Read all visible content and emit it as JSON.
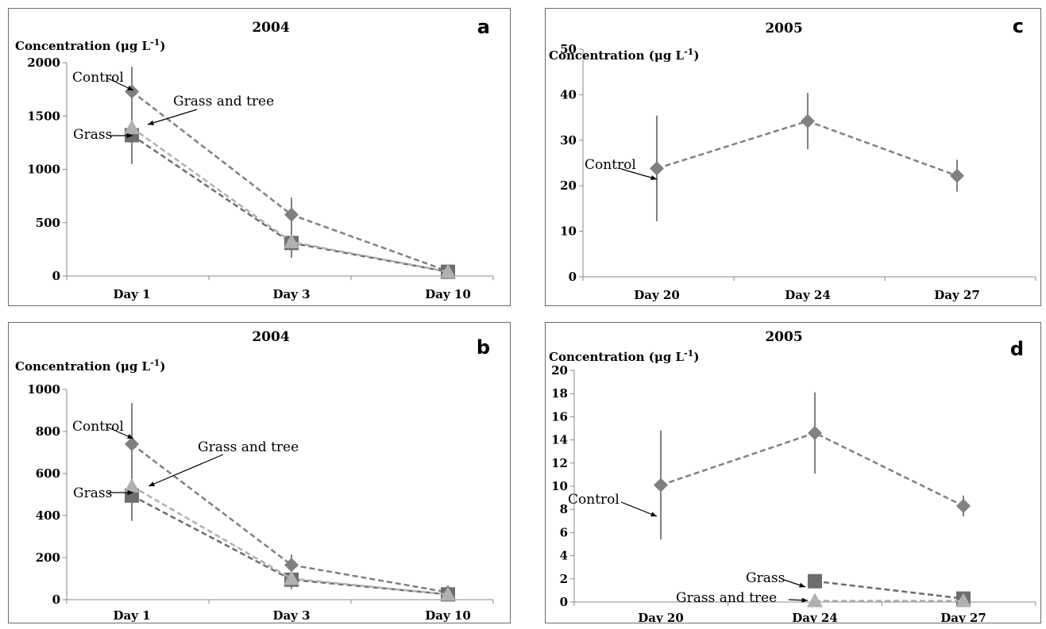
{
  "chart_data": [
    {
      "panel": "a",
      "type": "line",
      "title": "2004",
      "ylabel": "Concentration (μg L-1)",
      "ylabel_main": "Concentration (μg L",
      "ylabel_sup": "-1",
      "ylabel_end": ")",
      "categories": [
        "Day 1",
        "Day 3",
        "Day 10"
      ],
      "ylim": [
        0,
        2000
      ],
      "yticks": [
        0,
        500,
        1000,
        1500,
        2000
      ],
      "series": [
        {
          "name": "Control",
          "marker": "diamond",
          "color": "#808080",
          "values": [
            1730,
            575,
            45
          ],
          "err": [
            230,
            160,
            0
          ]
        },
        {
          "name": "Grass",
          "marker": "square",
          "color": "#6d6d6d",
          "values": [
            1320,
            310,
            40
          ],
          "err": [
            270,
            140,
            0
          ]
        },
        {
          "name": "Grass and tree",
          "marker": "triangle",
          "color": "#b0b0b0",
          "values": [
            1390,
            320,
            40
          ],
          "err": [
            0,
            0,
            0
          ]
        }
      ]
    },
    {
      "panel": "b",
      "type": "line",
      "title": "2004",
      "ylabel": "Concentration (μg L-1)",
      "ylabel_main": "Concentration (μg L",
      "ylabel_sup": "-1",
      "ylabel_end": ")",
      "categories": [
        "Day 1",
        "Day 3",
        "Day 10"
      ],
      "ylim": [
        0,
        1000
      ],
      "yticks": [
        0,
        200,
        400,
        600,
        800,
        1000
      ],
      "series": [
        {
          "name": "Control",
          "marker": "diamond",
          "color": "#808080",
          "values": [
            740,
            165,
            35
          ],
          "err": [
            195,
            50,
            0
          ]
        },
        {
          "name": "Grass",
          "marker": "square",
          "color": "#6d6d6d",
          "values": [
            495,
            95,
            25
          ],
          "err": [
            120,
            45,
            0
          ]
        },
        {
          "name": "Grass and tree",
          "marker": "triangle",
          "color": "#b0b0b0",
          "values": [
            540,
            100,
            25
          ],
          "err": [
            0,
            0,
            0
          ]
        }
      ]
    },
    {
      "panel": "c",
      "type": "line",
      "title": "2005",
      "ylabel": "Concentration (μg L-1)",
      "ylabel_main": "Concentration (μg L",
      "ylabel_sup": "-1",
      "ylabel_end": ")",
      "categories": [
        "Day 20",
        "Day 24",
        "Day 27"
      ],
      "ylim": [
        0,
        50
      ],
      "yticks": [
        0,
        10,
        20,
        30,
        40,
        50
      ],
      "series": [
        {
          "name": "Control",
          "marker": "diamond",
          "color": "#808080",
          "values": [
            23.8,
            34.2,
            22.2
          ],
          "err": [
            11.6,
            6.2,
            3.5
          ]
        }
      ]
    },
    {
      "panel": "d",
      "type": "line",
      "title": "2005",
      "ylabel": "Concentration (μg L-1)",
      "ylabel_main": "Concentration (μg L",
      "ylabel_sup": "-1",
      "ylabel_end": ")",
      "categories": [
        "Day 20",
        "Day 24",
        "Day 27"
      ],
      "ylim": [
        0,
        20
      ],
      "yticks": [
        0,
        2,
        4,
        6,
        8,
        10,
        12,
        14,
        16,
        18,
        20
      ],
      "series": [
        {
          "name": "Control",
          "marker": "diamond",
          "color": "#808080",
          "values": [
            10.1,
            14.6,
            8.3
          ],
          "err": [
            4.7,
            3.5,
            0.9
          ]
        },
        {
          "name": "Grass",
          "marker": "square",
          "color": "#6d6d6d",
          "values": [
            null,
            1.8,
            0.3
          ],
          "err": [
            0,
            0,
            0
          ]
        },
        {
          "name": "Grass and tree",
          "marker": "triangle",
          "color": "#b0b0b0",
          "values": [
            null,
            0.1,
            0.1
          ],
          "err": [
            0,
            0,
            0
          ]
        }
      ]
    }
  ]
}
